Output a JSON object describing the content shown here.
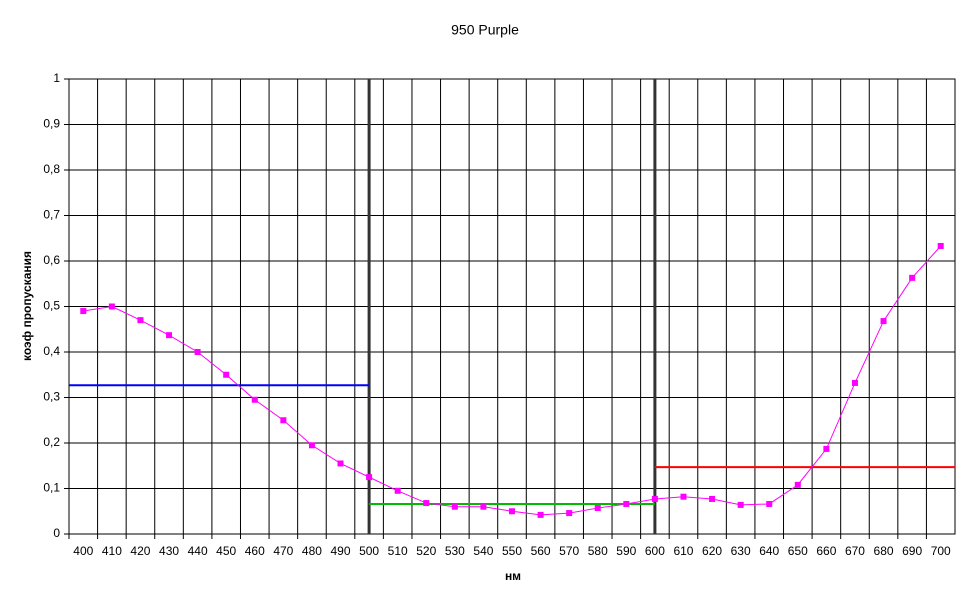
{
  "chart_data": {
    "type": "line",
    "title": "950 Purple",
    "xlabel": "нм",
    "ylabel": "коэф пропускания",
    "categories": [
      400,
      410,
      420,
      430,
      440,
      450,
      460,
      470,
      480,
      490,
      500,
      510,
      520,
      530,
      540,
      550,
      560,
      570,
      580,
      590,
      600,
      610,
      620,
      630,
      640,
      650,
      660,
      670,
      680,
      690,
      700
    ],
    "values": [
      0.49,
      0.5,
      0.47,
      0.437,
      0.4,
      0.35,
      0.295,
      0.25,
      0.195,
      0.155,
      0.125,
      0.095,
      0.068,
      0.06,
      0.06,
      0.05,
      0.042,
      0.046,
      0.057,
      0.066,
      0.077,
      0.082,
      0.077,
      0.064,
      0.066,
      0.108,
      0.187,
      0.332,
      0.468,
      0.563,
      0.633
    ],
    "color": "#ff00ff",
    "ylim": [
      0,
      1
    ],
    "yticks": [
      0,
      {
        "value": 0.1,
        "label": "0,1"
      },
      {
        "value": 0.2,
        "label": "0,2"
      },
      {
        "value": 0.3,
        "label": "0,3"
      },
      {
        "value": 0.4,
        "label": "0,4"
      },
      {
        "value": 0.5,
        "label": "0,5"
      },
      {
        "value": 0.6,
        "label": "0,6"
      },
      {
        "value": 0.7,
        "label": "0,7"
      },
      {
        "value": 0.8,
        "label": "0,8"
      },
      {
        "value": 0.9,
        "label": "0,9"
      },
      1
    ],
    "grid": true,
    "reference_lines": [
      {
        "start": 400,
        "end": 500,
        "value": 0.327,
        "color": "#0000ff"
      },
      {
        "start": 500,
        "end": 600,
        "value": 0.066,
        "color": "#00bb00"
      },
      {
        "start": 600,
        "end": 700,
        "value": 0.147,
        "color": "#ff0000"
      }
    ],
    "vertical_lines": [
      500,
      600
    ],
    "vertical_line_color": "#333333"
  }
}
